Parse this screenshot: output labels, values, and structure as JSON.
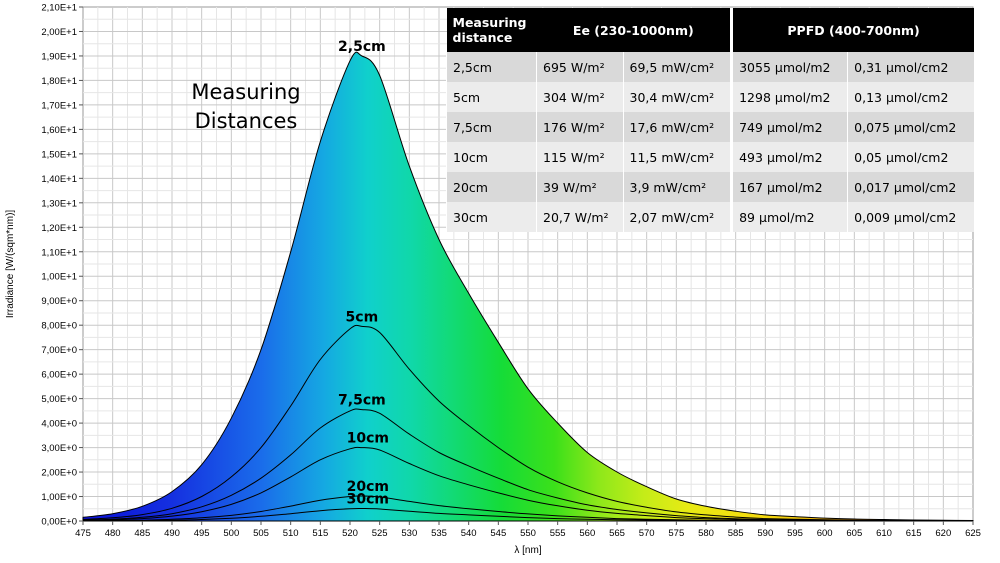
{
  "chart_data": {
    "type": "area",
    "xlabel": "λ [nm]",
    "ylabel": "Irradiance [W/(sqm*nm)]",
    "xlim": [
      475,
      625
    ],
    "ylim": [
      0,
      21
    ],
    "x_ticks": [
      "475",
      "480",
      "485",
      "490",
      "495",
      "500",
      "505",
      "510",
      "515",
      "520",
      "525",
      "530",
      "535",
      "540",
      "545",
      "550",
      "555",
      "560",
      "565",
      "570",
      "575",
      "580",
      "585",
      "590",
      "595",
      "600",
      "605",
      "610",
      "615",
      "620",
      "625"
    ],
    "y_ticks": [
      "0,00E+0",
      "1,00E+0",
      "2,00E+0",
      "3,00E+0",
      "4,00E+0",
      "5,00E+0",
      "6,00E+0",
      "7,00E+0",
      "8,00E+0",
      "9,00E+0",
      "1,00E+1",
      "1,10E+1",
      "1,20E+1",
      "1,30E+1",
      "1,40E+1",
      "1,50E+1",
      "1,60E+1",
      "1,70E+1",
      "1,80E+1",
      "1,90E+1",
      "2,00E+1",
      "2,10E+1"
    ],
    "grid": true,
    "x": [
      475,
      480,
      485,
      490,
      495,
      500,
      505,
      510,
      515,
      520,
      522,
      525,
      530,
      535,
      540,
      545,
      550,
      555,
      560,
      565,
      570,
      575,
      580,
      585,
      590,
      595,
      600,
      605,
      610,
      615,
      620,
      625
    ],
    "series": [
      {
        "name": "2,5cm",
        "label_x": 522,
        "values": [
          0.15,
          0.3,
          0.6,
          1.2,
          2.3,
          4.2,
          7.0,
          11.0,
          15.5,
          18.8,
          19.0,
          18.2,
          14.5,
          11.5,
          9.3,
          7.3,
          5.4,
          4.0,
          2.8,
          2.0,
          1.4,
          0.9,
          0.6,
          0.4,
          0.25,
          0.18,
          0.12,
          0.08,
          0.06,
          0.04,
          0.03,
          0.02
        ]
      },
      {
        "name": "5cm",
        "label_x": 522,
        "values": [
          0.06,
          0.13,
          0.26,
          0.52,
          1.0,
          1.8,
          3.0,
          4.7,
          6.6,
          7.85,
          7.95,
          7.7,
          6.2,
          4.9,
          3.9,
          3.0,
          2.2,
          1.6,
          1.15,
          0.8,
          0.56,
          0.37,
          0.25,
          0.16,
          0.1,
          0.07,
          0.05,
          0.03,
          0.02,
          0.02,
          0.01,
          0.01
        ]
      },
      {
        "name": "7,5cm",
        "label_x": 522,
        "values": [
          0.04,
          0.07,
          0.15,
          0.3,
          0.58,
          1.05,
          1.75,
          2.7,
          3.8,
          4.5,
          4.55,
          4.4,
          3.55,
          2.8,
          2.25,
          1.75,
          1.28,
          0.94,
          0.66,
          0.47,
          0.33,
          0.22,
          0.14,
          0.09,
          0.06,
          0.04,
          0.03,
          0.02,
          0.01,
          0.01,
          0.01,
          0.0
        ]
      },
      {
        "name": "10cm",
        "label_x": 523,
        "values": [
          0.02,
          0.05,
          0.1,
          0.2,
          0.38,
          0.68,
          1.15,
          1.8,
          2.5,
          2.95,
          3.0,
          2.9,
          2.35,
          1.85,
          1.48,
          1.15,
          0.85,
          0.62,
          0.44,
          0.31,
          0.22,
          0.14,
          0.09,
          0.06,
          0.04,
          0.03,
          0.02,
          0.01,
          0.01,
          0.01,
          0.0,
          0.0
        ]
      },
      {
        "name": "20cm",
        "label_x": 523,
        "values": [
          0.01,
          0.02,
          0.03,
          0.07,
          0.13,
          0.23,
          0.39,
          0.61,
          0.85,
          1.0,
          1.02,
          0.98,
          0.8,
          0.63,
          0.5,
          0.39,
          0.29,
          0.21,
          0.15,
          0.1,
          0.07,
          0.05,
          0.03,
          0.02,
          0.01,
          0.01,
          0.01,
          0.0,
          0.0,
          0.0,
          0.0,
          0.0
        ]
      },
      {
        "name": "30cm",
        "label_x": 523,
        "values": [
          0.0,
          0.01,
          0.02,
          0.03,
          0.06,
          0.11,
          0.19,
          0.3,
          0.42,
          0.5,
          0.51,
          0.49,
          0.4,
          0.31,
          0.25,
          0.19,
          0.14,
          0.1,
          0.07,
          0.05,
          0.04,
          0.02,
          0.02,
          0.01,
          0.01,
          0.0,
          0.0,
          0.0,
          0.0,
          0.0,
          0.0,
          0.0
        ]
      }
    ],
    "annotation": [
      "Measuring",
      "Distances"
    ]
  },
  "table": {
    "headers": [
      "Measuring distance",
      "Ee  (230-1000nm)",
      "PPFD (400-700nm)"
    ],
    "rows": [
      [
        "2,5cm",
        "695 W/m²",
        "69,5 mW/cm²",
        "3055 µmol/m2",
        "0,31 µmol/cm2"
      ],
      [
        "5cm",
        "304 W/m²",
        "30,4 mW/cm²",
        "1298 µmol/m2",
        "0,13 µmol/cm2"
      ],
      [
        "7,5cm",
        "176 W/m²",
        "17,6 mW/cm²",
        "749 µmol/m2",
        "0,075 µmol/cm2"
      ],
      [
        "10cm",
        "115 W/m²",
        "11,5 mW/cm²",
        "493 µmol/m2",
        "0,05 µmol/cm2"
      ],
      [
        "20cm",
        "39 W/m²",
        "3,9 mW/cm²",
        "167 µmol/m2",
        "0,017 µmol/cm2"
      ],
      [
        "30cm",
        "20,7 W/m²",
        "2,07 mW/cm²",
        "89 µmol/m2",
        "0,009 µmol/cm2"
      ]
    ]
  }
}
